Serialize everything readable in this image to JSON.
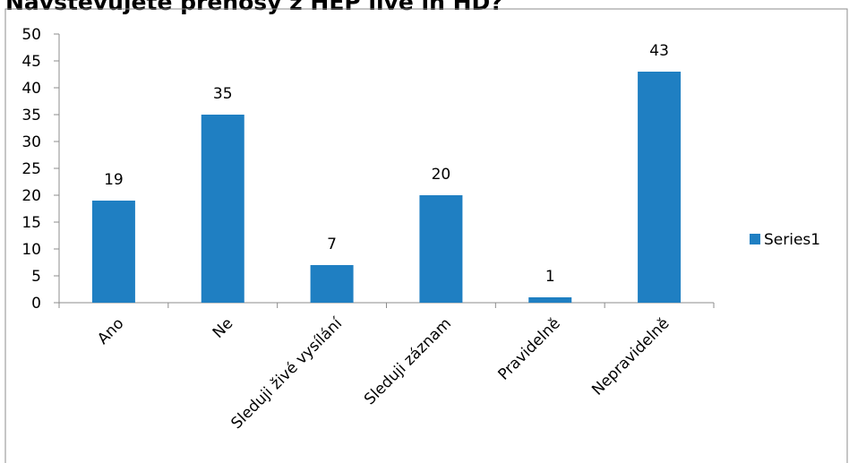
{
  "chart_data": {
    "type": "bar",
    "title": "Navštěvujete přenosy z HEP live in HD?",
    "categories": [
      "Ano",
      "Ne",
      "Sleduji živé vysílání",
      "Sleduji záznam",
      "Pravidelně",
      "Nepravidelně"
    ],
    "series": [
      {
        "name": "Series1",
        "values": [
          19,
          35,
          7,
          20,
          1,
          43
        ],
        "color": "#1f7fc2"
      }
    ],
    "ylim": [
      0,
      50
    ],
    "yticks": [
      0,
      5,
      10,
      15,
      20,
      25,
      30,
      35,
      40,
      45,
      50
    ],
    "data_labels": true,
    "grid": false,
    "legend": "right",
    "xlabel": "",
    "ylabel": ""
  }
}
